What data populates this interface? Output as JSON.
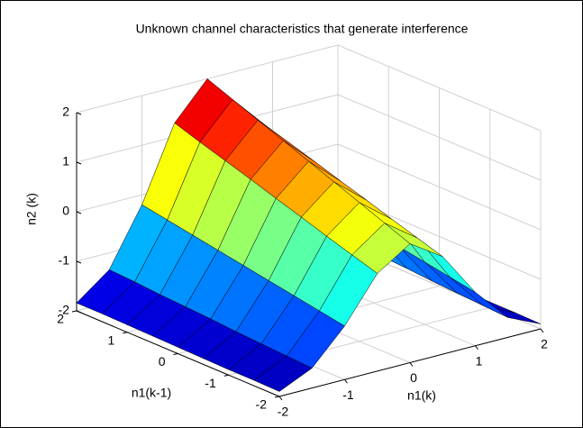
{
  "chart_data": {
    "type": "surface",
    "title": "Unknown channel characteristics that generate interference",
    "xlabel": "n1(k)",
    "ylabel": "n1(k-1)",
    "zlabel": "n2 (k)",
    "x": [
      -2,
      -1.5,
      -1,
      -0.5,
      0,
      0.5,
      1,
      1.5,
      2
    ],
    "y": [
      -2,
      -1.5,
      -1,
      -0.5,
      0,
      0.5,
      1,
      1.5,
      2
    ],
    "z": [
      [
        -1.9,
        -1.6,
        -0.92,
        -0.03,
        0.4,
        -0.03,
        -0.92,
        -1.6,
        -1.9
      ],
      [
        -1.89,
        -1.57,
        -0.83,
        0.13,
        0.6,
        0.13,
        -0.83,
        -1.57,
        -1.89
      ],
      [
        -1.89,
        -1.54,
        -0.74,
        0.29,
        0.8,
        0.29,
        -0.74,
        -1.54,
        -1.89
      ],
      [
        -1.88,
        -1.51,
        -0.65,
        0.46,
        1.0,
        0.46,
        -0.65,
        -1.51,
        -1.88
      ],
      [
        -1.87,
        -1.47,
        -0.56,
        0.62,
        1.2,
        0.62,
        -0.56,
        -1.47,
        -1.87
      ],
      [
        -1.86,
        -1.44,
        -0.47,
        0.79,
        1.4,
        0.79,
        -0.47,
        -1.44,
        -1.86
      ],
      [
        -1.85,
        -1.41,
        -0.38,
        0.95,
        1.6,
        0.95,
        -0.38,
        -1.41,
        -1.85
      ],
      [
        -1.84,
        -1.37,
        -0.29,
        1.11,
        1.8,
        1.11,
        -0.29,
        -1.37,
        -1.84
      ],
      [
        -1.84,
        -1.34,
        -0.2,
        1.28,
        2.0,
        1.28,
        -0.2,
        -1.34,
        -1.84
      ]
    ],
    "xlim": [
      -2,
      2
    ],
    "ylim": [
      -2,
      2
    ],
    "zlim": [
      -2,
      2
    ],
    "xticks": [
      -2,
      -1,
      0,
      1,
      2
    ],
    "yticks": [
      -2,
      -1,
      0,
      1,
      2
    ],
    "zticks": [
      -2,
      -1,
      0,
      1,
      2
    ],
    "colormap": "jet",
    "grid": true
  }
}
